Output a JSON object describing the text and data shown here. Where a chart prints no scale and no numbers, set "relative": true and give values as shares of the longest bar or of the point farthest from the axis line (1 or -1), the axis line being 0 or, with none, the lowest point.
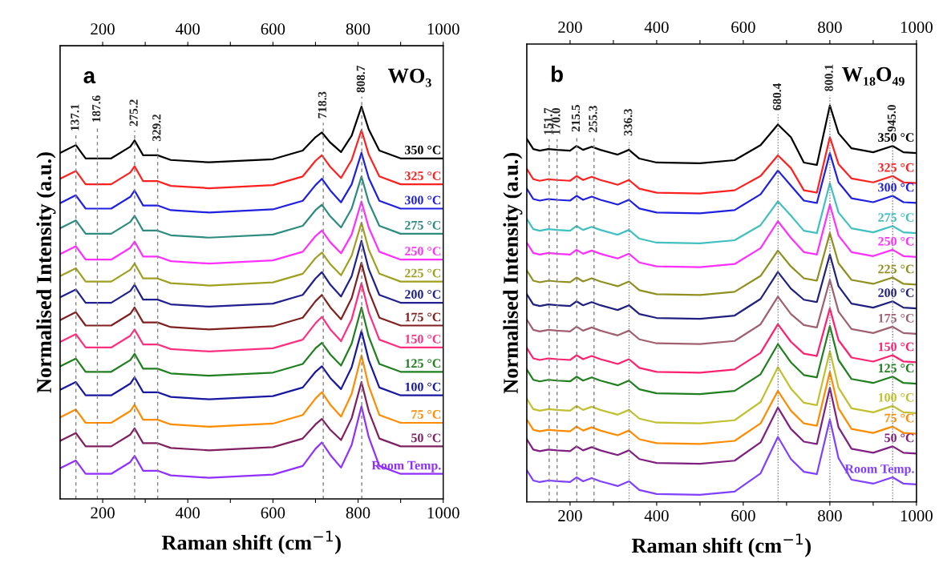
{
  "chart_data": [
    {
      "type": "line",
      "relative": true,
      "xlabel": "Raman shift (cm$^{−1}$)",
      "ylabel": "Normalised Intensity (a.u.)",
      "annotations": [
        "a",
        "WO₃"
      ],
      "xlim": [
        100,
        1000
      ],
      "xticks": [
        200,
        {
          "value": 300,
          "label": null
        },
        400,
        {
          "value": 500,
          "label": null
        },
        600,
        {
          "value": 700,
          "label": null
        },
        800,
        {
          "value": 900,
          "label": null
        },
        1000
      ],
      "x2lim": [
        100,
        1000
      ],
      "x2ticks": [
        200,
        {
          "value": 300,
          "label": null
        },
        400,
        {
          "value": 500,
          "label": null
        },
        600,
        {
          "value": 700,
          "label": null
        },
        800,
        {
          "value": 900,
          "label": null
        },
        1000
      ],
      "grid": false,
      "legend": false,
      "marker": "none",
      "line_style": "solid",
      "x": [
        100,
        137,
        160,
        220,
        265,
        275,
        295,
        329,
        360,
        450,
        600,
        670,
        700,
        715,
        735,
        760,
        785,
        808,
        825,
        850,
        900,
        1000
      ],
      "ref_lines": [
        {
          "axis": "x",
          "value": 137.1,
          "label": "137.1",
          "color": "#808080",
          "line_style": "dashed"
        },
        {
          "axis": "x",
          "value": 187.6,
          "label": "187.6",
          "color": "#808080",
          "line_style": "dashed"
        },
        {
          "axis": "x",
          "value": 275.2,
          "label": "275.2",
          "color": "#808080",
          "line_style": "dashed"
        },
        {
          "axis": "x",
          "value": 329.2,
          "label": "329.2",
          "color": "#808080",
          "line_style": "dashed"
        },
        {
          "axis": "x",
          "value": 718.3,
          "label": "718.3",
          "color": "#808080",
          "line_style": "dashed"
        },
        {
          "axis": "x",
          "value": 808.7,
          "label": "808.7",
          "color": "#808080",
          "line_style": "dashed"
        }
      ],
      "series": [
        {
          "name": "350 °C",
          "color": "#000000",
          "values": [
            0.882,
            0.902,
            0.868,
            0.868,
            0.898,
            0.914,
            0.876,
            0.876,
            0.864,
            0.858,
            0.866,
            0.888,
            0.922,
            0.934,
            0.908,
            0.884,
            0.926,
            1.0,
            0.942,
            0.888,
            0.868,
            0.868
          ]
        },
        {
          "name": "325 °C",
          "color": "#ff2020",
          "values": [
            0.816,
            0.836,
            0.802,
            0.802,
            0.832,
            0.848,
            0.81,
            0.81,
            0.798,
            0.792,
            0.8,
            0.822,
            0.862,
            0.876,
            0.846,
            0.818,
            0.864,
            0.94,
            0.878,
            0.822,
            0.802,
            0.802
          ]
        },
        {
          "name": "300 °C",
          "color": "#2020e0",
          "values": [
            0.754,
            0.774,
            0.74,
            0.74,
            0.77,
            0.786,
            0.748,
            0.748,
            0.736,
            0.73,
            0.738,
            0.76,
            0.8,
            0.816,
            0.786,
            0.756,
            0.802,
            0.882,
            0.818,
            0.76,
            0.74,
            0.74
          ]
        },
        {
          "name": "275 °C",
          "color": "#2e8b80",
          "values": [
            0.69,
            0.71,
            0.676,
            0.676,
            0.706,
            0.722,
            0.684,
            0.684,
            0.672,
            0.666,
            0.674,
            0.696,
            0.736,
            0.75,
            0.72,
            0.692,
            0.74,
            0.822,
            0.756,
            0.696,
            0.676,
            0.676
          ]
        },
        {
          "name": "250 °C",
          "color": "#ff30ff",
          "values": [
            0.624,
            0.644,
            0.61,
            0.61,
            0.64,
            0.656,
            0.618,
            0.618,
            0.606,
            0.6,
            0.608,
            0.63,
            0.67,
            0.684,
            0.654,
            0.626,
            0.674,
            0.758,
            0.692,
            0.63,
            0.61,
            0.61
          ]
        },
        {
          "name": "225 °C",
          "color": "#a0a020",
          "values": [
            0.568,
            0.588,
            0.554,
            0.554,
            0.584,
            0.6,
            0.562,
            0.562,
            0.55,
            0.544,
            0.552,
            0.574,
            0.614,
            0.628,
            0.598,
            0.57,
            0.62,
            0.704,
            0.636,
            0.574,
            0.554,
            0.554
          ]
        },
        {
          "name": "200 °C",
          "color": "#202090",
          "values": [
            0.514,
            0.534,
            0.5,
            0.5,
            0.53,
            0.546,
            0.508,
            0.508,
            0.496,
            0.49,
            0.498,
            0.52,
            0.562,
            0.578,
            0.546,
            0.516,
            0.568,
            0.658,
            0.586,
            0.52,
            0.5,
            0.5
          ]
        },
        {
          "name": "175 °C",
          "color": "#802020",
          "values": [
            0.456,
            0.476,
            0.442,
            0.442,
            0.472,
            0.488,
            0.45,
            0.45,
            0.438,
            0.432,
            0.44,
            0.462,
            0.504,
            0.52,
            0.488,
            0.458,
            0.512,
            0.602,
            0.53,
            0.462,
            0.442,
            0.442
          ]
        },
        {
          "name": "150 °C",
          "color": "#ff3080",
          "values": [
            0.4,
            0.42,
            0.386,
            0.386,
            0.416,
            0.432,
            0.394,
            0.394,
            0.382,
            0.376,
            0.384,
            0.406,
            0.448,
            0.464,
            0.432,
            0.402,
            0.458,
            0.55,
            0.476,
            0.406,
            0.386,
            0.386
          ]
        },
        {
          "name": "125 °C",
          "color": "#208020",
          "values": [
            0.338,
            0.358,
            0.324,
            0.324,
            0.354,
            0.37,
            0.332,
            0.332,
            0.32,
            0.314,
            0.322,
            0.344,
            0.384,
            0.398,
            0.368,
            0.34,
            0.396,
            0.488,
            0.414,
            0.344,
            0.324,
            0.324
          ]
        },
        {
          "name": "100 °C",
          "color": "#1818a0",
          "values": [
            0.278,
            0.298,
            0.264,
            0.264,
            0.294,
            0.31,
            0.272,
            0.272,
            0.26,
            0.254,
            0.262,
            0.284,
            0.324,
            0.338,
            0.308,
            0.28,
            0.336,
            0.428,
            0.354,
            0.284,
            0.264,
            0.264
          ]
        },
        {
          "name": "75 °C",
          "color": "#ff8c00",
          "values": [
            0.208,
            0.228,
            0.194,
            0.194,
            0.224,
            0.24,
            0.202,
            0.202,
            0.19,
            0.184,
            0.192,
            0.214,
            0.256,
            0.272,
            0.24,
            0.21,
            0.268,
            0.366,
            0.288,
            0.214,
            0.194,
            0.194
          ]
        },
        {
          "name": "50 °C",
          "color": "#802060",
          "values": [
            0.148,
            0.168,
            0.134,
            0.134,
            0.164,
            0.18,
            0.142,
            0.142,
            0.13,
            0.124,
            0.132,
            0.154,
            0.19,
            0.204,
            0.176,
            0.15,
            0.206,
            0.298,
            0.224,
            0.154,
            0.134,
            0.134
          ]
        },
        {
          "name": "Room Temp.",
          "color": "#9030ff",
          "values": [
            0.078,
            0.098,
            0.064,
            0.064,
            0.094,
            0.11,
            0.072,
            0.072,
            0.06,
            0.054,
            0.062,
            0.084,
            0.128,
            0.144,
            0.112,
            0.08,
            0.138,
            0.236,
            0.158,
            0.084,
            0.064,
            0.064
          ]
        }
      ]
    },
    {
      "type": "line",
      "relative": true,
      "xlabel": "Raman shift (cm$^{−1}$)",
      "ylabel": "Normalised Intensity (a.u.)",
      "annotations": [
        "b",
        "W₁₈O₄₉"
      ],
      "xlim": [
        100,
        1000
      ],
      "xticks": [
        200,
        {
          "value": 300,
          "label": null
        },
        400,
        {
          "value": 500,
          "label": null
        },
        600,
        {
          "value": 700,
          "label": null
        },
        800,
        {
          "value": 900,
          "label": null
        },
        1000
      ],
      "x2lim": [
        100,
        1000
      ],
      "x2ticks": [
        200,
        {
          "value": 300,
          "label": null
        },
        400,
        {
          "value": 500,
          "label": null
        },
        600,
        {
          "value": 700,
          "label": null
        },
        800,
        {
          "value": 900,
          "label": null
        },
        1000
      ],
      "grid": false,
      "legend": false,
      "marker": "none",
      "line_style": "solid",
      "x": [
        100,
        115,
        130,
        150,
        170,
        200,
        215,
        230,
        250,
        270,
        310,
        336,
        360,
        400,
        500,
        580,
        640,
        680,
        710,
        740,
        770,
        800,
        820,
        850,
        900,
        945,
        970,
        1000
      ],
      "ref_lines": [
        {
          "axis": "x",
          "value": 151.7,
          "label": "151.7",
          "color": "#808080",
          "line_style": "dashed"
        },
        {
          "axis": "x",
          "value": 170.0,
          "label": "170.0",
          "color": "#808080",
          "line_style": "dashed"
        },
        {
          "axis": "x",
          "value": 215.5,
          "label": "215.5",
          "color": "#808080",
          "line_style": "dashed"
        },
        {
          "axis": "x",
          "value": 255.3,
          "label": "255.3",
          "color": "#808080",
          "line_style": "dashed"
        },
        {
          "axis": "x",
          "value": 336.3,
          "label": "336.3",
          "color": "#808080",
          "line_style": "dotted"
        },
        {
          "axis": "x",
          "value": 680.4,
          "label": "680.4",
          "color": "#808080",
          "line_style": "dotted"
        },
        {
          "axis": "x",
          "value": 800.1,
          "label": "800.1",
          "color": "#808080",
          "line_style": "dotted"
        },
        {
          "axis": "x",
          "value": 945.0,
          "label": "945.0",
          "color": "#808080",
          "line_style": "dotted"
        }
      ],
      "series": [
        {
          "name": "350 °C",
          "color": "#000000",
          "values": [
            0.916,
            0.89,
            0.886,
            0.89,
            0.888,
            0.886,
            0.898,
            0.888,
            0.896,
            0.888,
            0.876,
            0.888,
            0.866,
            0.856,
            0.854,
            0.862,
            0.9,
            0.952,
            0.92,
            0.856,
            0.85,
            1.0,
            0.93,
            0.892,
            0.882,
            0.898,
            0.882,
            0.88
          ]
        },
        {
          "name": "325 °C",
          "color": "#ff2020",
          "values": [
            0.84,
            0.814,
            0.81,
            0.814,
            0.812,
            0.81,
            0.822,
            0.812,
            0.82,
            0.812,
            0.8,
            0.812,
            0.79,
            0.78,
            0.778,
            0.786,
            0.822,
            0.874,
            0.842,
            0.786,
            0.78,
            0.92,
            0.852,
            0.816,
            0.806,
            0.822,
            0.806,
            0.804
          ]
        },
        {
          "name": "300 °C",
          "color": "#2020e0",
          "values": [
            0.79,
            0.764,
            0.76,
            0.764,
            0.762,
            0.76,
            0.772,
            0.762,
            0.77,
            0.762,
            0.75,
            0.762,
            0.74,
            0.73,
            0.728,
            0.736,
            0.776,
            0.836,
            0.798,
            0.76,
            0.754,
            0.88,
            0.806,
            0.766,
            0.756,
            0.772,
            0.756,
            0.754
          ]
        },
        {
          "name": "275 °C",
          "color": "#40c0c0",
          "values": [
            0.714,
            0.688,
            0.684,
            0.688,
            0.686,
            0.684,
            0.696,
            0.686,
            0.694,
            0.686,
            0.674,
            0.686,
            0.664,
            0.654,
            0.652,
            0.66,
            0.698,
            0.758,
            0.722,
            0.684,
            0.678,
            0.804,
            0.73,
            0.69,
            0.68,
            0.696,
            0.68,
            0.678
          ]
        },
        {
          "name": "250 °C",
          "color": "#ff30ff",
          "values": [
            0.654,
            0.628,
            0.624,
            0.628,
            0.626,
            0.624,
            0.636,
            0.626,
            0.634,
            0.626,
            0.614,
            0.626,
            0.604,
            0.594,
            0.592,
            0.6,
            0.64,
            0.708,
            0.666,
            0.63,
            0.624,
            0.75,
            0.672,
            0.63,
            0.62,
            0.636,
            0.62,
            0.618
          ]
        },
        {
          "name": "225 °C",
          "color": "#909020",
          "values": [
            0.584,
            0.558,
            0.554,
            0.558,
            0.556,
            0.554,
            0.566,
            0.556,
            0.564,
            0.556,
            0.544,
            0.556,
            0.534,
            0.524,
            0.522,
            0.53,
            0.57,
            0.634,
            0.594,
            0.564,
            0.558,
            0.678,
            0.602,
            0.56,
            0.55,
            0.566,
            0.55,
            0.548
          ]
        },
        {
          "name": "200 °C",
          "color": "#202080",
          "values": [
            0.524,
            0.498,
            0.494,
            0.498,
            0.496,
            0.494,
            0.506,
            0.496,
            0.504,
            0.496,
            0.484,
            0.496,
            0.474,
            0.464,
            0.462,
            0.47,
            0.512,
            0.58,
            0.538,
            0.51,
            0.504,
            0.624,
            0.544,
            0.5,
            0.49,
            0.506,
            0.49,
            0.488
          ]
        },
        {
          "name": "175 °C",
          "color": "#a06070",
          "values": [
            0.46,
            0.434,
            0.43,
            0.434,
            0.432,
            0.43,
            0.442,
            0.432,
            0.44,
            0.432,
            0.42,
            0.432,
            0.41,
            0.4,
            0.398,
            0.406,
            0.448,
            0.518,
            0.474,
            0.446,
            0.44,
            0.56,
            0.48,
            0.436,
            0.426,
            0.442,
            0.426,
            0.424
          ]
        },
        {
          "name": "150 °C",
          "color": "#ff2070",
          "values": [
            0.388,
            0.362,
            0.358,
            0.362,
            0.36,
            0.358,
            0.37,
            0.36,
            0.368,
            0.36,
            0.348,
            0.36,
            0.338,
            0.328,
            0.326,
            0.334,
            0.376,
            0.448,
            0.404,
            0.374,
            0.368,
            0.488,
            0.408,
            0.364,
            0.354,
            0.37,
            0.354,
            0.352
          ]
        },
        {
          "name": "125 °C",
          "color": "#208020",
          "values": [
            0.334,
            0.308,
            0.304,
            0.308,
            0.306,
            0.304,
            0.316,
            0.306,
            0.314,
            0.306,
            0.294,
            0.306,
            0.284,
            0.274,
            0.272,
            0.28,
            0.322,
            0.398,
            0.352,
            0.32,
            0.314,
            0.444,
            0.358,
            0.31,
            0.3,
            0.316,
            0.3,
            0.298
          ]
        },
        {
          "name": "100 °C",
          "color": "#c0c030",
          "values": [
            0.26,
            0.234,
            0.23,
            0.234,
            0.232,
            0.23,
            0.242,
            0.232,
            0.24,
            0.232,
            0.22,
            0.232,
            0.21,
            0.2,
            0.198,
            0.206,
            0.252,
            0.34,
            0.286,
            0.25,
            0.244,
            0.38,
            0.288,
            0.236,
            0.226,
            0.242,
            0.226,
            0.224
          ]
        },
        {
          "name": "75 °C",
          "color": "#ff8c00",
          "values": [
            0.208,
            0.182,
            0.178,
            0.182,
            0.18,
            0.178,
            0.19,
            0.18,
            0.188,
            0.18,
            0.168,
            0.18,
            0.158,
            0.148,
            0.146,
            0.154,
            0.198,
            0.28,
            0.23,
            0.198,
            0.192,
            0.328,
            0.236,
            0.184,
            0.174,
            0.19,
            0.174,
            0.172
          ]
        },
        {
          "name": "50 °C",
          "color": "#802080",
          "values": [
            0.158,
            0.132,
            0.128,
            0.132,
            0.13,
            0.128,
            0.14,
            0.13,
            0.138,
            0.13,
            0.118,
            0.13,
            0.108,
            0.098,
            0.096,
            0.104,
            0.15,
            0.238,
            0.184,
            0.152,
            0.146,
            0.288,
            0.188,
            0.134,
            0.124,
            0.14,
            0.124,
            0.122
          ]
        },
        {
          "name": "Room Temp.",
          "color": "#8040ff",
          "values": [
            0.08,
            0.054,
            0.05,
            0.054,
            0.052,
            0.05,
            0.062,
            0.052,
            0.06,
            0.052,
            0.04,
            0.052,
            0.03,
            0.02,
            0.018,
            0.026,
            0.072,
            0.164,
            0.108,
            0.076,
            0.07,
            0.208,
            0.11,
            0.056,
            0.046,
            0.062,
            0.046,
            0.044
          ]
        }
      ]
    }
  ]
}
